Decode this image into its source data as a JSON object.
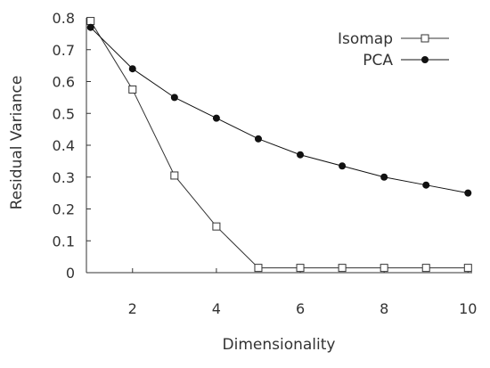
{
  "chart_data": {
    "type": "line",
    "x": [
      1,
      2,
      3,
      4,
      5,
      6,
      7,
      8,
      9,
      10
    ],
    "xlabel": "Dimensionality",
    "ylabel": "Residual Variance",
    "xlim": [
      0.9,
      10.1
    ],
    "ylim": [
      0,
      0.8
    ],
    "xticks": [
      2,
      4,
      6,
      8,
      10
    ],
    "yticks": [
      0,
      0.1,
      0.2,
      0.3,
      0.4,
      0.5,
      0.6,
      0.7,
      0.8
    ],
    "ytick_labels": [
      "0",
      "0.1",
      "0.2",
      "0.3",
      "0.4",
      "0.5",
      "0.6",
      "0.7",
      "0.8"
    ],
    "grid": false,
    "legend": "top-right",
    "series": [
      {
        "name": "Isomap",
        "marker": "open-square",
        "color": "#333333",
        "values": [
          0.79,
          0.575,
          0.305,
          0.145,
          0.015,
          0.015,
          0.015,
          0.015,
          0.015,
          0.015
        ]
      },
      {
        "name": "PCA",
        "marker": "filled-circle",
        "color": "#111111",
        "values": [
          0.77,
          0.64,
          0.55,
          0.485,
          0.42,
          0.37,
          0.335,
          0.3,
          0.275,
          0.25
        ]
      }
    ]
  }
}
